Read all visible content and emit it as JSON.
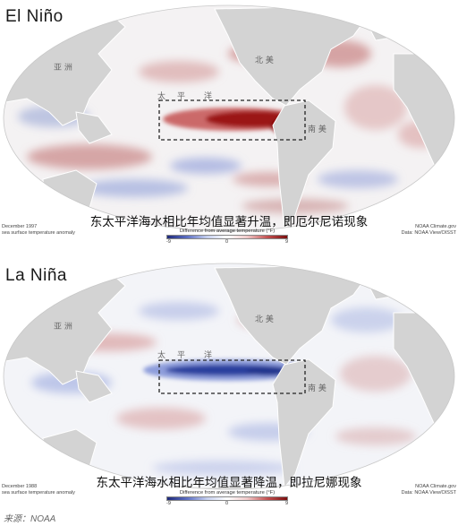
{
  "panels": [
    {
      "id": "el-nino",
      "title": "El Niño",
      "caption": "东太平洋海水相比年均值显著升温，即厄尔尼诺现象",
      "date_line": "December 1997",
      "metric_line": "sea surface temperature anomaly",
      "credit_line1": "NOAA Climate.gov",
      "credit_line2": "Data: NOAA View/OISST",
      "anomaly": "warm",
      "labels": {
        "asia": "亚 洲",
        "north_america": "北 美",
        "pacific_1": "太",
        "pacific_2": "平",
        "pacific_3": "洋",
        "south_america": "南 美"
      }
    },
    {
      "id": "la-nina",
      "title": "La Niña",
      "caption": "东太平洋海水相比年均值显著降温，即拉尼娜现象",
      "date_line": "December 1988",
      "metric_line": "sea surface temperature anomaly",
      "credit_line1": "NOAA Climate.gov",
      "credit_line2": "Data: NOAA View/OISST",
      "anomaly": "cool",
      "labels": {
        "asia": "亚 洲",
        "north_america": "北 美",
        "pacific_1": "太",
        "pacific_2": "平",
        "pacific_3": "洋",
        "south_america": "南 美"
      }
    }
  ],
  "legend": {
    "title": "Difference from average temperature (°F)",
    "min_label": "-9",
    "mid_label": "0",
    "max_label": "9"
  },
  "source": "来源：NOAA",
  "colors": {
    "land": "#d4d4d4",
    "ocean_base": "#f4f4f6",
    "warm": "#9e1b1b",
    "cool": "#2b3f9e"
  }
}
